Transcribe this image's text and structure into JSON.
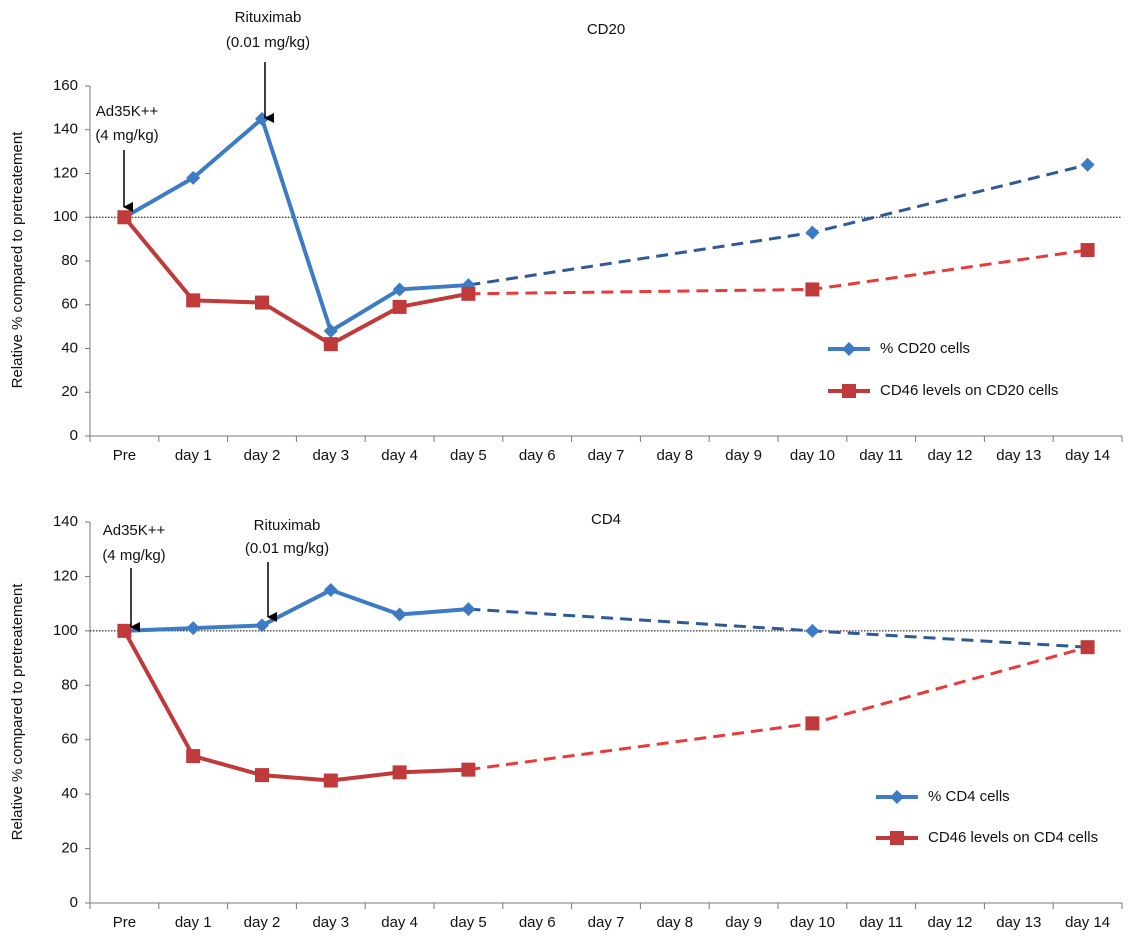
{
  "chart_data": [
    {
      "type": "line",
      "title": "CD20",
      "y_label": "Relative % compared to pretreatement",
      "categories": [
        "Pre",
        "day 1",
        "day 2",
        "day 3",
        "day 4",
        "day 5",
        "day 6",
        "day 7",
        "day 8",
        "day 9",
        "day 10",
        "day 11",
        "day 12",
        "day 13",
        "day 14"
      ],
      "series": [
        {
          "name": "% CD20 cells",
          "color": "#3d7cc4",
          "dash_color": "#2f5a96",
          "marker": "diamond",
          "values": [
            100,
            118,
            145,
            48,
            67,
            69,
            null,
            null,
            null,
            null,
            93,
            null,
            null,
            null,
            124
          ]
        },
        {
          "name": "CD46 levels on CD20 cells",
          "color": "#c0393b",
          "dash_color": "#e83a3a",
          "marker": "square",
          "values": [
            100,
            62,
            61,
            42,
            59,
            65,
            null,
            null,
            null,
            null,
            67,
            null,
            null,
            null,
            85
          ]
        }
      ],
      "ylim": [
        0,
        160
      ],
      "yticks": [
        0,
        20,
        40,
        60,
        80,
        100,
        120,
        140,
        160
      ],
      "reference_line": 100,
      "legend": "right",
      "annotations": [
        {
          "lines": [
            "Ad35K++",
            "(4 mg/kg)"
          ]
        },
        {
          "lines": [
            "Rituximab",
            "(0.01 mg/kg)"
          ]
        }
      ]
    },
    {
      "type": "line",
      "title": "CD4",
      "y_label": "Relative % compared to pretreatement",
      "categories": [
        "Pre",
        "day 1",
        "day 2",
        "day 3",
        "day 4",
        "day 5",
        "day 6",
        "day 7",
        "day 8",
        "day 9",
        "day 10",
        "day 11",
        "day 12",
        "day 13",
        "day 14"
      ],
      "series": [
        {
          "name": "% CD4 cells",
          "color": "#3d7cc4",
          "dash_color": "#2f5a96",
          "marker": "diamond",
          "values": [
            100,
            101,
            102,
            115,
            106,
            108,
            null,
            null,
            null,
            null,
            100,
            null,
            null,
            null,
            94
          ]
        },
        {
          "name": "CD46 levels on CD4 cells",
          "color": "#c0393b",
          "dash_color": "#e83a3a",
          "marker": "square",
          "values": [
            100,
            54,
            47,
            45,
            48,
            49,
            null,
            null,
            null,
            null,
            66,
            null,
            null,
            null,
            94
          ]
        }
      ],
      "ylim": [
        0,
        140
      ],
      "yticks": [
        0,
        20,
        40,
        60,
        80,
        100,
        120,
        140
      ],
      "reference_line": 100,
      "legend": "right",
      "annotations": [
        {
          "lines": [
            "Ad35K++",
            "(4 mg/kg)"
          ]
        },
        {
          "lines": [
            "Rituximab",
            "(0.01 mg/kg)"
          ]
        }
      ]
    }
  ]
}
